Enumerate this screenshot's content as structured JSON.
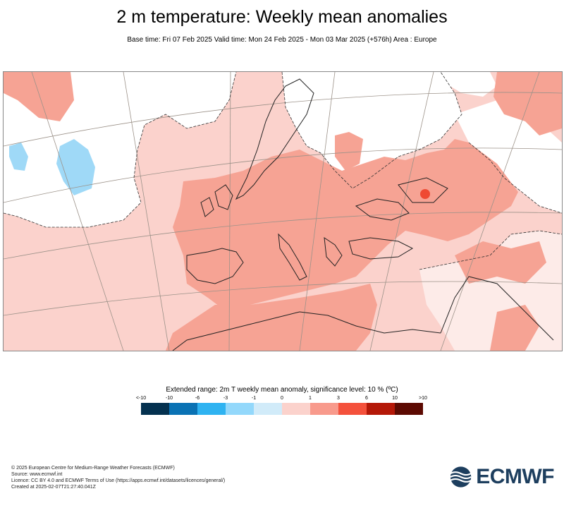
{
  "title": "2 m temperature: Weekly mean anomalies",
  "subtitle": "Base time: Fri 07 Feb 2025 Valid time: Mon 24 Feb 2025 - Mon 03 Mar 2025 (+576h) Area : Europe",
  "legend": {
    "title": "Extended range: 2m T weekly mean anomaly, significance level: 10 % (ºC)",
    "ticks": [
      "<-10",
      "-10",
      "-6",
      "-3",
      "-1",
      "0",
      "1",
      "3",
      "6",
      "10",
      ">10"
    ],
    "colors": [
      "#04314f",
      "#0a72b4",
      "#2fb3f1",
      "#93d8fb",
      "#d1ebf9",
      "#fbd2cc",
      "#f89a8c",
      "#f4513c",
      "#b41808",
      "#5c0a02"
    ]
  },
  "map": {
    "area": "Europe",
    "colors": {
      "ocean_anomaly": "#fbd2cc",
      "land_warm": "#f6a394",
      "cold": "#9fd9f7",
      "insignificant": "#ffffff",
      "hot_spot": "#ef4a33"
    }
  },
  "footer": [
    "© 2025 European Centre for Medium-Range Weather Forecasts (ECMWF)",
    "Source: www.ecmwf.int",
    "Licence: CC BY 4.0 and ECMWF Terms of Use (https://apps.ecmwf.int/datasets/licences/general/)",
    "Created at 2025-02-07T21:27:40.041Z"
  ],
  "logo": {
    "text": "ECMWF",
    "color": "#1d3e5e"
  }
}
